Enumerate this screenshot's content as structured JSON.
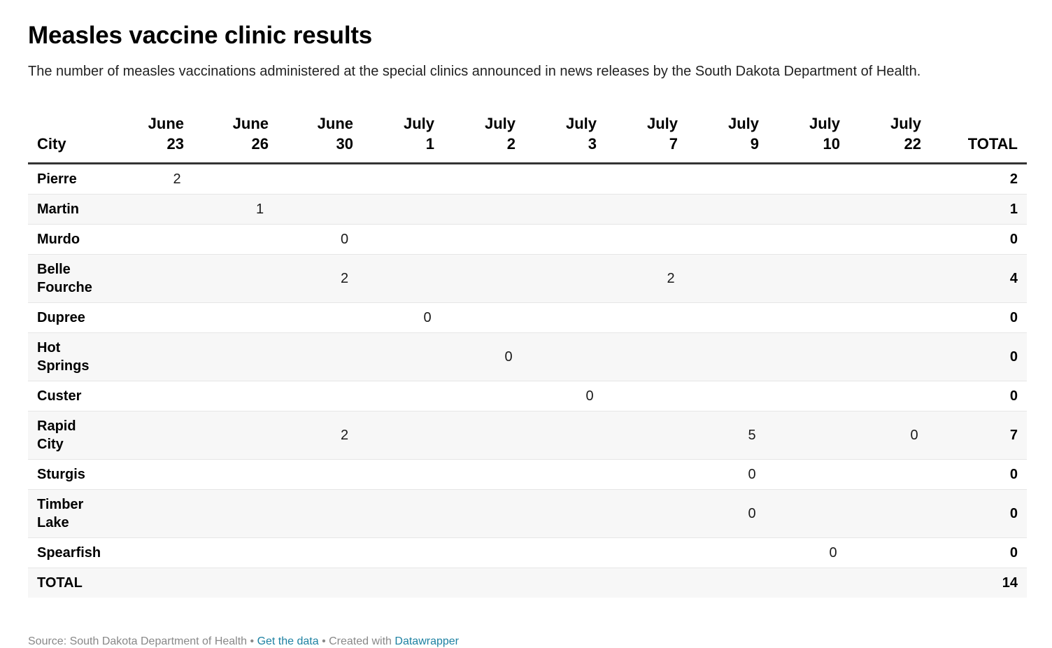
{
  "title": "Measles vaccine clinic results",
  "description": "The number of measles vaccinations administered at the special clinics announced in news releases by the South Dakota Department of Health.",
  "chart_data": {
    "type": "table",
    "columns": [
      {
        "line1": "City",
        "line2": ""
      },
      {
        "line1": "June",
        "line2": "23"
      },
      {
        "line1": "June",
        "line2": "26"
      },
      {
        "line1": "June",
        "line2": "30"
      },
      {
        "line1": "July",
        "line2": "1"
      },
      {
        "line1": "July",
        "line2": "2"
      },
      {
        "line1": "July",
        "line2": "3"
      },
      {
        "line1": "July",
        "line2": "7"
      },
      {
        "line1": "July",
        "line2": "9"
      },
      {
        "line1": "July",
        "line2": "10"
      },
      {
        "line1": "July",
        "line2": "22"
      },
      {
        "line1": "TOTAL",
        "line2": ""
      }
    ],
    "rows": [
      {
        "city": [
          "Pierre"
        ],
        "values": [
          "2",
          "",
          "",
          "",
          "",
          "",
          "",
          "",
          "",
          ""
        ],
        "total": "2"
      },
      {
        "city": [
          "Martin"
        ],
        "values": [
          "",
          "1",
          "",
          "",
          "",
          "",
          "",
          "",
          "",
          ""
        ],
        "total": "1"
      },
      {
        "city": [
          "Murdo"
        ],
        "values": [
          "",
          "",
          "0",
          "",
          "",
          "",
          "",
          "",
          "",
          ""
        ],
        "total": "0"
      },
      {
        "city": [
          "Belle",
          "Fourche"
        ],
        "values": [
          "",
          "",
          "2",
          "",
          "",
          "",
          "2",
          "",
          "",
          ""
        ],
        "total": "4"
      },
      {
        "city": [
          "Dupree"
        ],
        "values": [
          "",
          "",
          "",
          "0",
          "",
          "",
          "",
          "",
          "",
          ""
        ],
        "total": "0"
      },
      {
        "city": [
          "Hot",
          "Springs"
        ],
        "values": [
          "",
          "",
          "",
          "",
          "0",
          "",
          "",
          "",
          "",
          ""
        ],
        "total": "0"
      },
      {
        "city": [
          "Custer"
        ],
        "values": [
          "",
          "",
          "",
          "",
          "",
          "0",
          "",
          "",
          "",
          ""
        ],
        "total": "0"
      },
      {
        "city": [
          "Rapid",
          "City"
        ],
        "values": [
          "",
          "",
          "2",
          "",
          "",
          "",
          "",
          "5",
          "",
          "0"
        ],
        "total": "7"
      },
      {
        "city": [
          "Sturgis"
        ],
        "values": [
          "",
          "",
          "",
          "",
          "",
          "",
          "",
          "0",
          "",
          ""
        ],
        "total": "0"
      },
      {
        "city": [
          "Timber",
          "Lake"
        ],
        "values": [
          "",
          "",
          "",
          "",
          "",
          "",
          "",
          "0",
          "",
          ""
        ],
        "total": "0"
      },
      {
        "city": [
          "Spearfish"
        ],
        "values": [
          "",
          "",
          "",
          "",
          "",
          "",
          "",
          "",
          "0",
          ""
        ],
        "total": "0"
      }
    ],
    "total_row": {
      "label": "TOTAL",
      "values": [
        "",
        "",
        "",
        "",
        "",
        "",
        "",
        "",
        "",
        ""
      ],
      "total": "14"
    }
  },
  "footer": {
    "source": "Source: South Dakota Department of Health • ",
    "get_data": "Get the data",
    "sep": " • Created with ",
    "tool": "Datawrapper"
  }
}
